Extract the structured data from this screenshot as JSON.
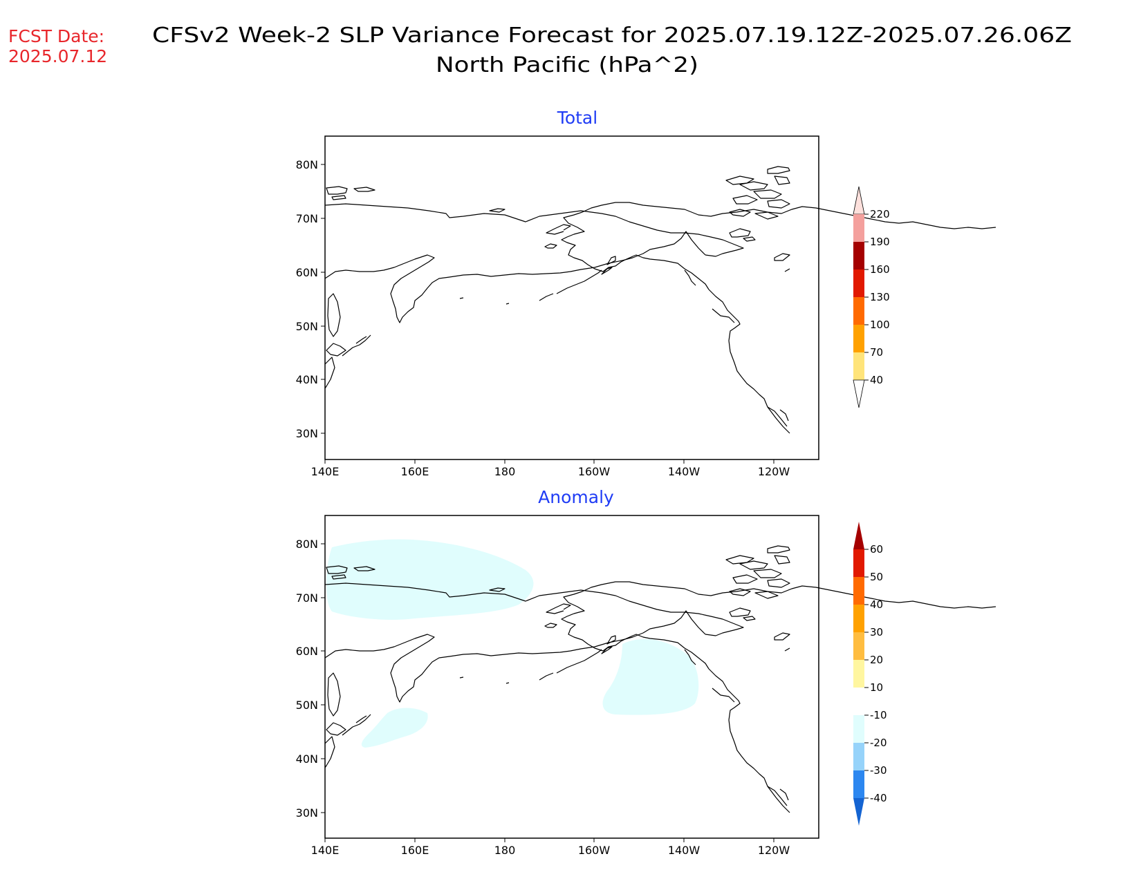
{
  "header": {
    "fcst_label": "FCST Date:",
    "fcst_date": "2025.07.12",
    "title_line1": "CFSv2 Week-2 SLP Variance Forecast for 2025.07.19.12Z-2025.07.26.06Z",
    "title_line2": "North Pacific (hPa^2)"
  },
  "colors": {
    "fcst": "#e8262b",
    "title": "#000000",
    "panel_title": "#1f3cf5",
    "anomaly_shade": "#e0fdfd"
  },
  "panels": [
    {
      "title": "Total",
      "lat_ticks": [
        "80N",
        "70N",
        "60N",
        "50N",
        "40N",
        "30N"
      ],
      "lon_ticks": [
        "140E",
        "160E",
        "180",
        "160W",
        "140W",
        "120W"
      ]
    },
    {
      "title": "Anomaly",
      "lat_ticks": [
        "80N",
        "70N",
        "60N",
        "50N",
        "40N",
        "30N"
      ],
      "lon_ticks": [
        "140E",
        "160E",
        "180",
        "160W",
        "140W",
        "120W"
      ]
    }
  ],
  "colorbars": {
    "total": {
      "labels": [
        "220",
        "190",
        "160",
        "130",
        "100",
        "70",
        "40"
      ],
      "colors": [
        "#fde0dc",
        "#f4a09d",
        "#a50000",
        "#e11900",
        "#ff6a00",
        "#ffa100",
        "#ffe47a"
      ]
    },
    "anomaly": {
      "labels": [
        "60",
        "50",
        "40",
        "30",
        "20",
        "10",
        "-10",
        "-20",
        "-30",
        "-40"
      ],
      "colors": [
        "#a50000",
        "#e11900",
        "#ff6a00",
        "#ffa100",
        "#ffbd40",
        "#fff6a0",
        "#ffffff",
        "#e0fdfd",
        "#96d3fa",
        "#2c87f0",
        "#1464d2"
      ]
    }
  }
}
